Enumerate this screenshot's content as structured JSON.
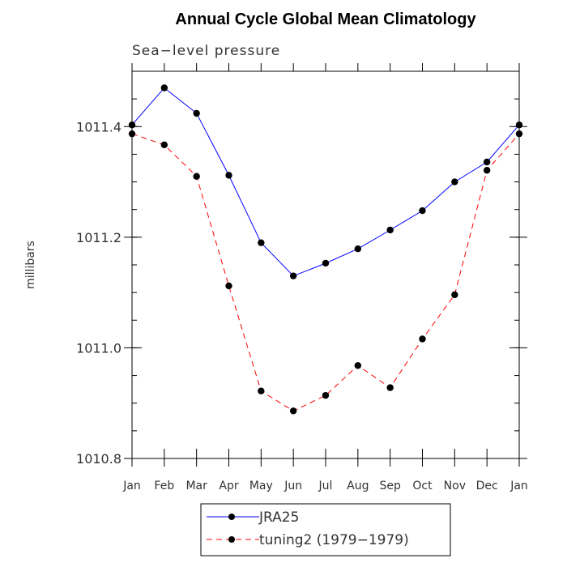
{
  "chart_data": {
    "type": "line",
    "title": "Annual Cycle Global Mean Climatology",
    "subtitle": "Sea−level pressure",
    "ylabel": "millibars",
    "xlabel": "",
    "categories": [
      "Jan",
      "Feb",
      "Mar",
      "Apr",
      "May",
      "Jun",
      "Jul",
      "Aug",
      "Sep",
      "Oct",
      "Nov",
      "Dec",
      "Jan"
    ],
    "ylim": [
      1010.8,
      1011.5
    ],
    "yticks": [
      "1010.8",
      "1011.0",
      "1011.2",
      "1011.4"
    ],
    "ytick_values": [
      1010.8,
      1011.0,
      1011.2,
      1011.4
    ],
    "legend_position": "bottom",
    "series": [
      {
        "name": "JRA25",
        "color": "#0000ff",
        "dash": "solid",
        "values": [
          1011.403,
          1011.47,
          1011.424,
          1011.312,
          1011.19,
          1011.13,
          1011.153,
          1011.179,
          1011.213,
          1011.248,
          1011.3,
          1011.336,
          1011.403
        ]
      },
      {
        "name": "tuning2 (1979−1979)",
        "color": "#ff0000",
        "dash": "dashed",
        "values": [
          1011.387,
          1011.367,
          1011.31,
          1011.112,
          1010.922,
          1010.886,
          1010.914,
          1010.968,
          1010.928,
          1011.016,
          1011.096,
          1011.321,
          1011.387
        ]
      }
    ]
  }
}
